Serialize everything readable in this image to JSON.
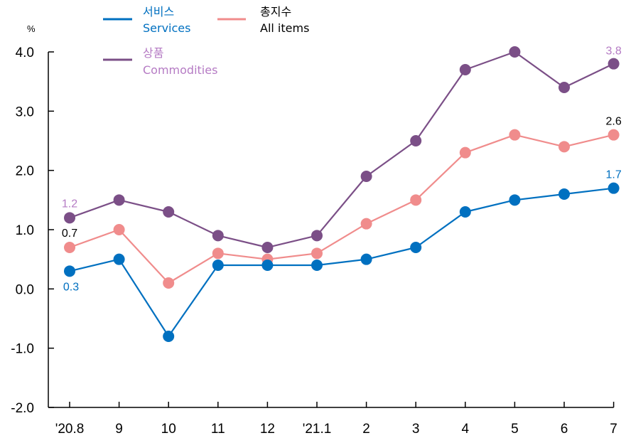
{
  "chart_data": {
    "type": "line",
    "unit": "%",
    "categories": [
      "'20.8",
      "9",
      "10",
      "11",
      "12",
      "'21.1",
      "2",
      "3",
      "4",
      "5",
      "6",
      "7"
    ],
    "ylim": [
      -2.0,
      4.0
    ],
    "yticks": [
      "4.0",
      "3.0",
      "2.0",
      "1.0",
      "0.0",
      "-1.0",
      "-2.0"
    ],
    "grid": false,
    "legend": "top-left",
    "series": [
      {
        "key": "commodities",
        "name_ko": "상품",
        "name_en": "Commodities",
        "color": "#7b4f87",
        "label_color": "#b57bc4",
        "values": [
          1.2,
          1.5,
          1.3,
          0.9,
          0.7,
          0.9,
          1.9,
          2.5,
          3.7,
          4.0,
          3.4,
          3.8
        ]
      },
      {
        "key": "all_items",
        "name_ko": "총지수",
        "name_en": "All items",
        "color": "#f08c8c",
        "label_color": "#000000",
        "values": [
          0.7,
          1.0,
          0.1,
          0.6,
          0.5,
          0.6,
          1.1,
          1.5,
          2.3,
          2.6,
          2.4,
          2.6
        ]
      },
      {
        "key": "services",
        "name_ko": "서비스",
        "name_en": "Services",
        "color": "#0070c0",
        "label_color": "#0070c0",
        "values": [
          0.3,
          0.5,
          -0.8,
          0.4,
          0.4,
          0.4,
          0.5,
          0.7,
          1.3,
          1.5,
          1.6,
          1.7
        ]
      }
    ],
    "annotations": [
      {
        "series": "commodities",
        "index": 0,
        "text": "1.2"
      },
      {
        "series": "commodities",
        "index": 11,
        "text": "3.8"
      },
      {
        "series": "all_items",
        "index": 0,
        "text": "0.7"
      },
      {
        "series": "all_items",
        "index": 11,
        "text": "2.6"
      },
      {
        "series": "services",
        "index": 0,
        "text": "0.3"
      },
      {
        "series": "services",
        "index": 11,
        "text": "1.7"
      }
    ]
  }
}
